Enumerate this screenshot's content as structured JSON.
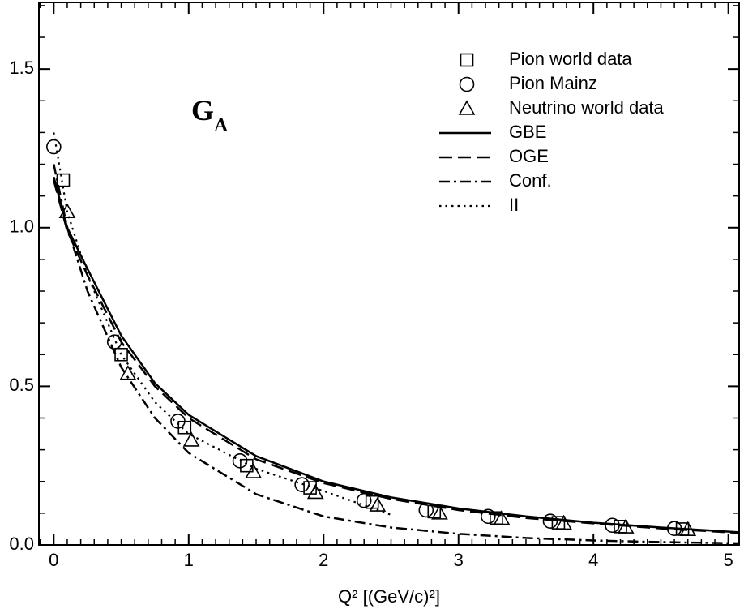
{
  "chart_data": {
    "type": "line",
    "annotation": {
      "text": "G",
      "subscript": "A"
    },
    "xlabel": "Q² [(GeV/c)²]",
    "xlim": [
      -0.11,
      5.08
    ],
    "ylim": [
      0,
      1.71
    ],
    "xticks": [
      0,
      1,
      2,
      3,
      4,
      5
    ],
    "yticks": [
      {
        "value": 0,
        "label": "0.0"
      },
      0.5,
      {
        "value": 1,
        "label": "1.0"
      },
      1.5
    ],
    "minor_tick_step": {
      "x": 0.1,
      "y": 0.1
    },
    "legend": "upper right",
    "series": [
      {
        "name": "Pion world data",
        "kind": "scatter",
        "marker": "square",
        "color": "#000000",
        "x": [
          0.07,
          0.5,
          0.97,
          1.43,
          1.9,
          2.36,
          2.82,
          3.28,
          3.74,
          4.2,
          4.66
        ],
        "values": [
          1.15,
          0.6,
          0.37,
          0.25,
          0.18,
          0.135,
          0.105,
          0.085,
          0.07,
          0.058,
          0.05
        ]
      },
      {
        "name": "Pion Mainz",
        "kind": "scatter",
        "marker": "circle",
        "color": "#000000",
        "x": [
          0,
          0.45,
          0.92,
          1.38,
          1.84,
          2.3,
          2.76,
          3.22,
          3.68,
          4.14,
          4.6
        ],
        "values": [
          1.255,
          0.64,
          0.39,
          0.265,
          0.19,
          0.14,
          0.11,
          0.09,
          0.075,
          0.062,
          0.052
        ]
      },
      {
        "name": "Neutrino world data",
        "kind": "scatter",
        "marker": "triangle",
        "color": "#000000",
        "x": [
          0.1,
          0.55,
          1.02,
          1.48,
          1.94,
          2.4,
          2.86,
          3.32,
          3.78,
          4.24,
          4.7
        ],
        "values": [
          1.05,
          0.54,
          0.33,
          0.23,
          0.165,
          0.125,
          0.1,
          0.083,
          0.068,
          0.056,
          0.048
        ]
      },
      {
        "name": "GBE",
        "kind": "line",
        "dash": "solid",
        "color": "#000000",
        "x": [
          0,
          0.1,
          0.25,
          0.5,
          0.75,
          1,
          1.5,
          2,
          2.5,
          3,
          3.5,
          4,
          4.5,
          5.08
        ],
        "values": [
          1.16,
          1.0,
          0.87,
          0.66,
          0.51,
          0.41,
          0.28,
          0.2,
          0.15,
          0.115,
          0.09,
          0.07,
          0.055,
          0.04
        ]
      },
      {
        "name": "OGE",
        "kind": "line",
        "dash": "dashed",
        "color": "#000000",
        "x": [
          0,
          0.1,
          0.25,
          0.5,
          0.75,
          1,
          1.5,
          2,
          2.5,
          3,
          3.5,
          4,
          4.5,
          5.08
        ],
        "values": [
          1.15,
          0.99,
          0.85,
          0.64,
          0.5,
          0.4,
          0.27,
          0.195,
          0.145,
          0.11,
          0.085,
          0.068,
          0.052,
          0.038
        ]
      },
      {
        "name": "Conf.",
        "kind": "line",
        "dash": "dashdot",
        "color": "#000000",
        "x": [
          0,
          0.1,
          0.25,
          0.5,
          0.75,
          1,
          1.5,
          2,
          2.5,
          3,
          3.5,
          4,
          4.5,
          5.08
        ],
        "values": [
          1.2,
          1.0,
          0.8,
          0.56,
          0.4,
          0.29,
          0.16,
          0.09,
          0.055,
          0.035,
          0.022,
          0.014,
          0.009,
          0.005
        ]
      },
      {
        "name": "II",
        "kind": "line",
        "dash": "dotted",
        "color": "#000000",
        "x": [
          0,
          0.1,
          0.25,
          0.5,
          0.75,
          1,
          1.5,
          2,
          2.5
        ],
        "values": [
          1.3,
          1.05,
          0.85,
          0.6,
          0.45,
          0.35,
          0.24,
          0.17,
          0.095
        ]
      }
    ]
  }
}
